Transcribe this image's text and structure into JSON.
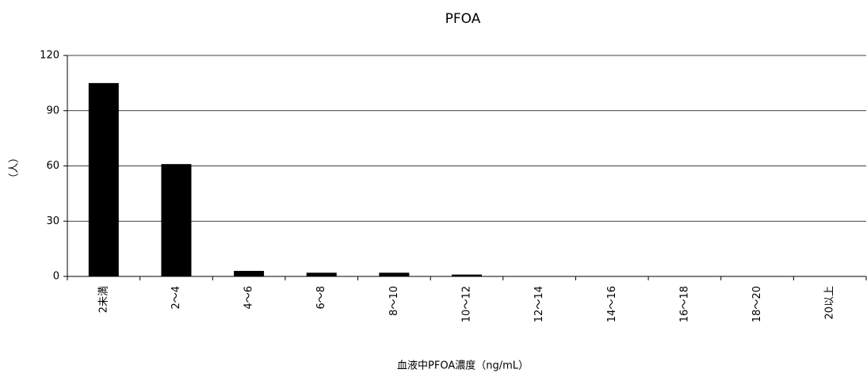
{
  "chart_data": {
    "type": "bar",
    "title": "PFOA",
    "y_label": "（人）",
    "x_label": "血液中PFOA濃度（ng/mL）",
    "categories": [
      "2未満",
      "2～4",
      "4～6",
      "6～8",
      "8～10",
      "10～12",
      "12～14",
      "14～16",
      "16～18",
      "18～20",
      "20以上"
    ],
    "values": [
      105,
      61,
      3,
      2,
      2,
      1,
      0,
      0,
      0,
      0,
      0
    ],
    "color": "#000000",
    "ylim": [
      0,
      120
    ],
    "yticks": [
      0,
      30,
      60,
      90,
      120
    ],
    "grid": true
  }
}
